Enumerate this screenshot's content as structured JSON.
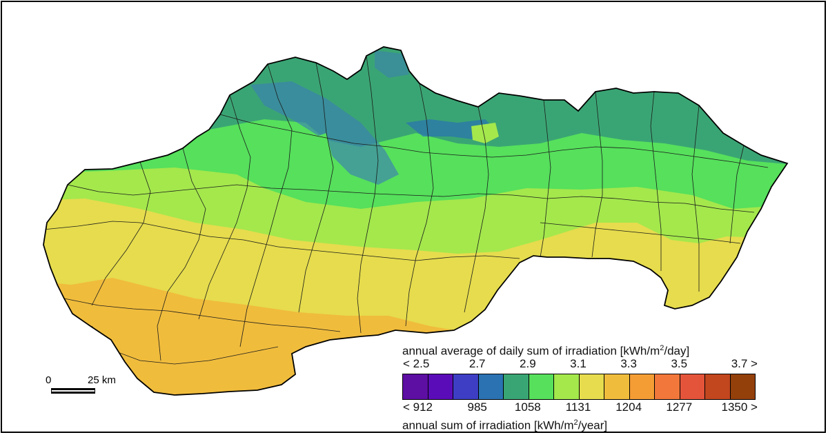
{
  "legend": {
    "daily_title_prefix": "annual average of daily sum of irradiation [kWh/m",
    "daily_title_sup": "2",
    "daily_title_suffix": "/day]",
    "annual_title_prefix": "annual sum of irradiation [kWh/m",
    "annual_title_sup": "2",
    "annual_title_suffix": "/year]",
    "daily_ticks": [
      "< 2.5",
      "2.7",
      "2.9",
      "3.1",
      "3.3",
      "3.5",
      "3.7 >"
    ],
    "annual_ticks": [
      "< 912",
      "985",
      "1058",
      "1131",
      "1204",
      "1277",
      "1350 >"
    ],
    "colors": [
      "#5d0ea3",
      "#5a0cb8",
      "#3d3ec4",
      "#2a72b2",
      "#3aa574",
      "#56e05c",
      "#a4e84c",
      "#e6dc4d",
      "#f0bc3c",
      "#f59d35",
      "#f2773a",
      "#e4543a",
      "#c2461e",
      "#93400b"
    ]
  },
  "scale": {
    "zero_label": "0",
    "distance_label": "25 km"
  },
  "map": {
    "zone_colors": {
      "dark_blue": "#3a7fb2",
      "teal": "#3aa574",
      "green": "#56e05c",
      "light_green": "#a4e84c",
      "yellow": "#e6dc4d",
      "orange": "#f0bc3c"
    }
  }
}
